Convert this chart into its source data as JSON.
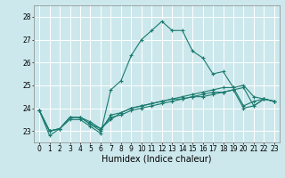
{
  "title": "",
  "xlabel": "Humidex (Indice chaleur)",
  "bg_color": "#cce8ec",
  "grid_color": "#ffffff",
  "line_color": "#1a7a6e",
  "xlim": [
    -0.5,
    23.5
  ],
  "ylim": [
    22.5,
    28.5
  ],
  "yticks": [
    23,
    24,
    25,
    26,
    27,
    28
  ],
  "xticks": [
    0,
    1,
    2,
    3,
    4,
    5,
    6,
    7,
    8,
    9,
    10,
    11,
    12,
    13,
    14,
    15,
    16,
    17,
    18,
    19,
    20,
    21,
    22,
    23
  ],
  "series": [
    [
      23.9,
      22.8,
      23.1,
      23.5,
      23.5,
      23.2,
      22.9,
      24.8,
      25.2,
      26.3,
      27.0,
      27.4,
      27.8,
      27.4,
      27.4,
      26.5,
      26.2,
      25.5,
      25.6,
      24.9,
      24.1,
      24.3,
      24.4,
      24.3
    ],
    [
      23.9,
      23.0,
      23.1,
      23.6,
      23.6,
      23.4,
      23.1,
      23.5,
      23.8,
      24.0,
      24.1,
      24.2,
      24.3,
      24.4,
      24.5,
      24.6,
      24.7,
      24.8,
      24.9,
      24.9,
      25.0,
      24.5,
      24.4,
      24.3
    ],
    [
      23.9,
      23.0,
      23.1,
      23.6,
      23.6,
      23.3,
      23.1,
      23.6,
      23.7,
      23.9,
      24.0,
      24.1,
      24.2,
      24.3,
      24.4,
      24.5,
      24.5,
      24.6,
      24.7,
      24.8,
      24.0,
      24.1,
      24.4,
      24.3
    ],
    [
      23.9,
      23.0,
      23.1,
      23.6,
      23.6,
      23.3,
      23.0,
      23.7,
      23.8,
      24.0,
      24.1,
      24.2,
      24.3,
      24.4,
      24.4,
      24.5,
      24.6,
      24.7,
      24.7,
      24.8,
      24.9,
      24.1,
      24.4,
      24.3
    ]
  ],
  "tick_fontsize": 5.5,
  "xlabel_fontsize": 7
}
